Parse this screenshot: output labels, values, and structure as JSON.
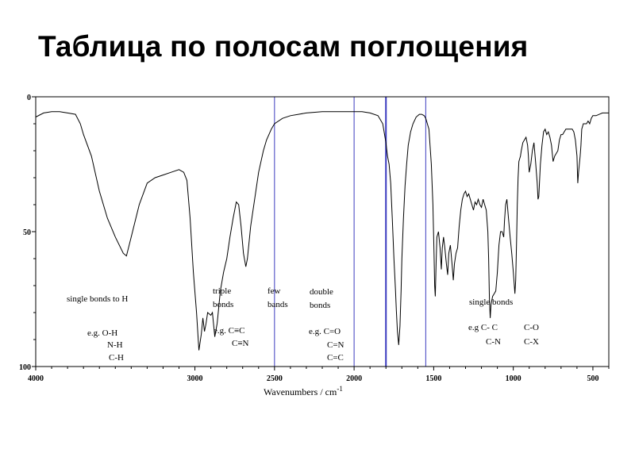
{
  "slide": {
    "title": "Таблица по полосам поглощения"
  },
  "chart_data": {
    "type": "line",
    "xlabel": "Wavenumbers / cm",
    "xlabel_sup": "-1",
    "xlim": [
      4000,
      400
    ],
    "ylim": [
      0,
      100
    ],
    "y_inverted": true,
    "grid": false,
    "x_ticks": [
      4000,
      3000,
      2500,
      2000,
      1500,
      1000,
      500
    ],
    "x_tick_labels": [
      "4000",
      "3000",
      "2500",
      "2000",
      "1500",
      "1000",
      "500"
    ],
    "y_ticks": [
      0,
      50,
      100
    ],
    "y_tick_labels": [
      "0",
      "50",
      "100"
    ],
    "region_lines": [
      2500,
      2000,
      1800,
      1550
    ],
    "region_line_color": "#3b3bbf",
    "curve_color": "#000000",
    "annotations": {
      "single_h": {
        "title": "single bonds to H",
        "eg": "e.g. O-H",
        "l2": "N-H",
        "l3": "C-H"
      },
      "triple": {
        "t1": "triple",
        "t2": "bonds",
        "eg": "e.g. C≡C",
        "l2": "C≡N"
      },
      "few": {
        "t1": "few",
        "t2": "bands"
      },
      "double": {
        "t1": "double",
        "t2": "bonds",
        "eg": "e.g. C=O",
        "l2": "C=N",
        "l3": "C=C"
      },
      "single": {
        "title": "single bonds",
        "eg": "e.g C- C",
        "l2": "C-N",
        "c1": "C-O",
        "c2": "C-X"
      }
    },
    "series": [
      {
        "points": [
          [
            4000,
            7.5
          ],
          [
            3950,
            6
          ],
          [
            3900,
            5.5
          ],
          [
            3850,
            5.5
          ],
          [
            3800,
            6
          ],
          [
            3750,
            6.5
          ],
          [
            3720,
            10
          ],
          [
            3700,
            14
          ],
          [
            3650,
            22
          ],
          [
            3600,
            35
          ],
          [
            3550,
            45
          ],
          [
            3500,
            52
          ],
          [
            3450,
            58
          ],
          [
            3430,
            59
          ],
          [
            3400,
            52
          ],
          [
            3350,
            40
          ],
          [
            3300,
            32
          ],
          [
            3250,
            30
          ],
          [
            3200,
            29
          ],
          [
            3150,
            28
          ],
          [
            3100,
            27
          ],
          [
            3070,
            28
          ],
          [
            3050,
            31
          ],
          [
            3030,
            45
          ],
          [
            3010,
            65
          ],
          [
            2990,
            80
          ],
          [
            2975,
            94
          ],
          [
            2960,
            88
          ],
          [
            2950,
            82
          ],
          [
            2940,
            87
          ],
          [
            2930,
            84
          ],
          [
            2920,
            80
          ],
          [
            2900,
            81
          ],
          [
            2890,
            80
          ],
          [
            2875,
            89
          ],
          [
            2860,
            84
          ],
          [
            2840,
            72
          ],
          [
            2820,
            65
          ],
          [
            2800,
            60
          ],
          [
            2780,
            52
          ],
          [
            2760,
            45
          ],
          [
            2740,
            39
          ],
          [
            2725,
            40
          ],
          [
            2710,
            48
          ],
          [
            2695,
            58
          ],
          [
            2680,
            63
          ],
          [
            2670,
            60
          ],
          [
            2650,
            48
          ],
          [
            2620,
            36
          ],
          [
            2600,
            28
          ],
          [
            2570,
            20
          ],
          [
            2550,
            16
          ],
          [
            2520,
            12
          ],
          [
            2500,
            10
          ],
          [
            2450,
            8
          ],
          [
            2400,
            7
          ],
          [
            2350,
            6.5
          ],
          [
            2300,
            6
          ],
          [
            2200,
            5.5
          ],
          [
            2100,
            5.5
          ],
          [
            2000,
            5.5
          ],
          [
            1950,
            5.5
          ],
          [
            1900,
            6
          ],
          [
            1850,
            7
          ],
          [
            1820,
            10
          ],
          [
            1800,
            17
          ],
          [
            1790,
            22
          ],
          [
            1780,
            25
          ],
          [
            1770,
            32
          ],
          [
            1760,
            45
          ],
          [
            1750,
            60
          ],
          [
            1740,
            72
          ],
          [
            1735,
            79
          ],
          [
            1728,
            87
          ],
          [
            1720,
            92
          ],
          [
            1712,
            85
          ],
          [
            1705,
            72
          ],
          [
            1700,
            60
          ],
          [
            1690,
            45
          ],
          [
            1680,
            33
          ],
          [
            1670,
            25
          ],
          [
            1660,
            18
          ],
          [
            1645,
            13
          ],
          [
            1630,
            10
          ],
          [
            1610,
            7.5
          ],
          [
            1590,
            6.5
          ],
          [
            1575,
            6.5
          ],
          [
            1560,
            7
          ],
          [
            1550,
            8
          ],
          [
            1530,
            12
          ],
          [
            1515,
            25
          ],
          [
            1505,
            40
          ],
          [
            1498,
            58
          ],
          [
            1494,
            70
          ],
          [
            1490,
            74
          ],
          [
            1485,
            62
          ],
          [
            1480,
            52
          ],
          [
            1470,
            50
          ],
          [
            1460,
            56
          ],
          [
            1452,
            64
          ],
          [
            1446,
            56
          ],
          [
            1438,
            52
          ],
          [
            1430,
            56
          ],
          [
            1420,
            62
          ],
          [
            1412,
            66
          ],
          [
            1405,
            58
          ],
          [
            1395,
            55
          ],
          [
            1385,
            62
          ],
          [
            1377,
            68
          ],
          [
            1370,
            62
          ],
          [
            1360,
            58
          ],
          [
            1350,
            56
          ],
          [
            1340,
            48
          ],
          [
            1330,
            42
          ],
          [
            1320,
            38
          ],
          [
            1310,
            36
          ],
          [
            1300,
            35
          ],
          [
            1290,
            37
          ],
          [
            1280,
            36
          ],
          [
            1270,
            38
          ],
          [
            1260,
            40
          ],
          [
            1250,
            42
          ],
          [
            1240,
            39
          ],
          [
            1230,
            40
          ],
          [
            1220,
            38
          ],
          [
            1210,
            40
          ],
          [
            1200,
            41
          ],
          [
            1190,
            38
          ],
          [
            1180,
            40
          ],
          [
            1170,
            42
          ],
          [
            1160,
            50
          ],
          [
            1155,
            60
          ],
          [
            1150,
            75
          ],
          [
            1145,
            82
          ],
          [
            1140,
            77
          ],
          [
            1130,
            74
          ],
          [
            1120,
            73
          ],
          [
            1110,
            72
          ],
          [
            1100,
            65
          ],
          [
            1090,
            55
          ],
          [
            1080,
            50
          ],
          [
            1070,
            50
          ],
          [
            1060,
            52
          ],
          [
            1055,
            46
          ],
          [
            1048,
            40
          ],
          [
            1040,
            38
          ],
          [
            1030,
            45
          ],
          [
            1020,
            52
          ],
          [
            1010,
            58
          ],
          [
            1000,
            65
          ],
          [
            990,
            73
          ],
          [
            985,
            68
          ],
          [
            980,
            55
          ],
          [
            975,
            40
          ],
          [
            970,
            30
          ],
          [
            965,
            24
          ],
          [
            955,
            22
          ],
          [
            950,
            20
          ],
          [
            940,
            17
          ],
          [
            930,
            16
          ],
          [
            920,
            15
          ],
          [
            910,
            18
          ],
          [
            905,
            22
          ],
          [
            900,
            28
          ],
          [
            890,
            25
          ],
          [
            880,
            20
          ],
          [
            870,
            17
          ],
          [
            860,
            24
          ],
          [
            850,
            32
          ],
          [
            845,
            38
          ],
          [
            840,
            37
          ],
          [
            830,
            25
          ],
          [
            820,
            18
          ],
          [
            810,
            13
          ],
          [
            800,
            12
          ],
          [
            790,
            14
          ],
          [
            780,
            13
          ],
          [
            770,
            15
          ],
          [
            760,
            18
          ],
          [
            750,
            24
          ],
          [
            740,
            22
          ],
          [
            730,
            21
          ],
          [
            720,
            20
          ],
          [
            710,
            16
          ],
          [
            700,
            14
          ],
          [
            690,
            14
          ],
          [
            680,
            13
          ],
          [
            670,
            12
          ],
          [
            660,
            12
          ],
          [
            650,
            12
          ],
          [
            640,
            12
          ],
          [
            630,
            12
          ],
          [
            620,
            13
          ],
          [
            610,
            16
          ],
          [
            600,
            22
          ],
          [
            595,
            32
          ],
          [
            590,
            28
          ],
          [
            580,
            22
          ],
          [
            575,
            18
          ],
          [
            570,
            12
          ],
          [
            560,
            10
          ],
          [
            540,
            10
          ],
          [
            530,
            9
          ],
          [
            520,
            10
          ],
          [
            510,
            8
          ],
          [
            500,
            7
          ],
          [
            480,
            7
          ],
          [
            460,
            6.5
          ],
          [
            440,
            6
          ],
          [
            420,
            6
          ],
          [
            400,
            6
          ]
        ]
      }
    ]
  }
}
